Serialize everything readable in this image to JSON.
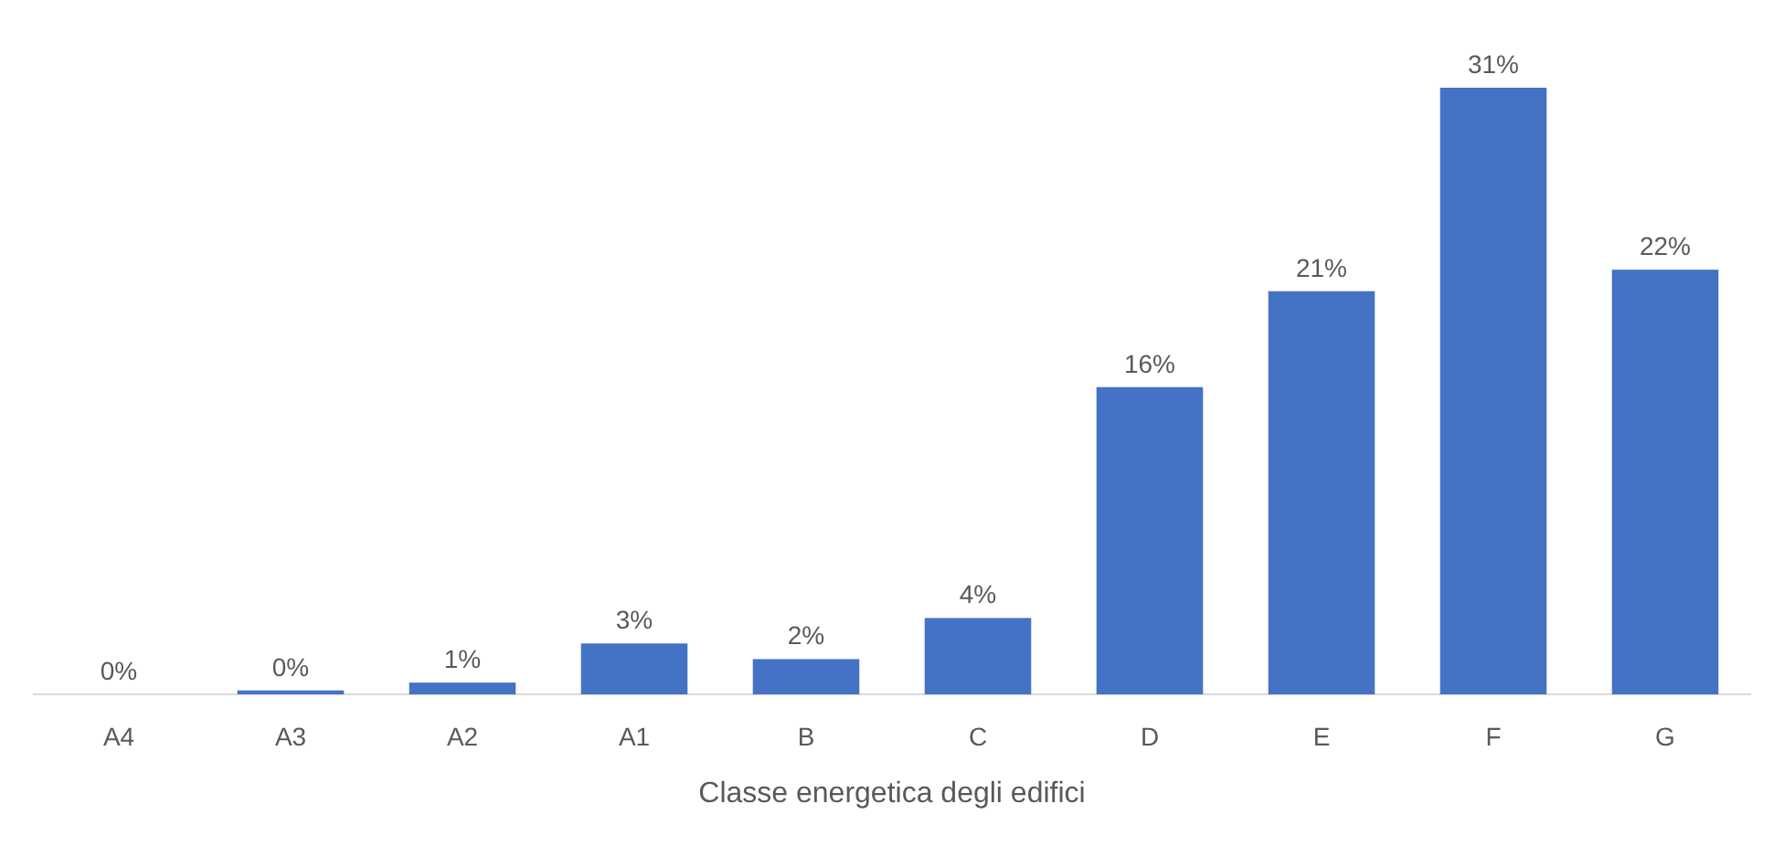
{
  "chart_data": {
    "type": "bar",
    "xlabel": "Classe energetica degli edifici",
    "categories": [
      "A4",
      "A3",
      "A2",
      "A1",
      "B",
      "C",
      "D",
      "E",
      "F",
      "G"
    ],
    "values": [
      0,
      0.2,
      0.6,
      2.6,
      1.8,
      3.9,
      15.7,
      20.6,
      31,
      21.7
    ],
    "value_labels": [
      "0%",
      "0%",
      "1%",
      "3%",
      "2%",
      "4%",
      "16%",
      "21%",
      "31%",
      "22%"
    ],
    "color": "#4472c4"
  }
}
